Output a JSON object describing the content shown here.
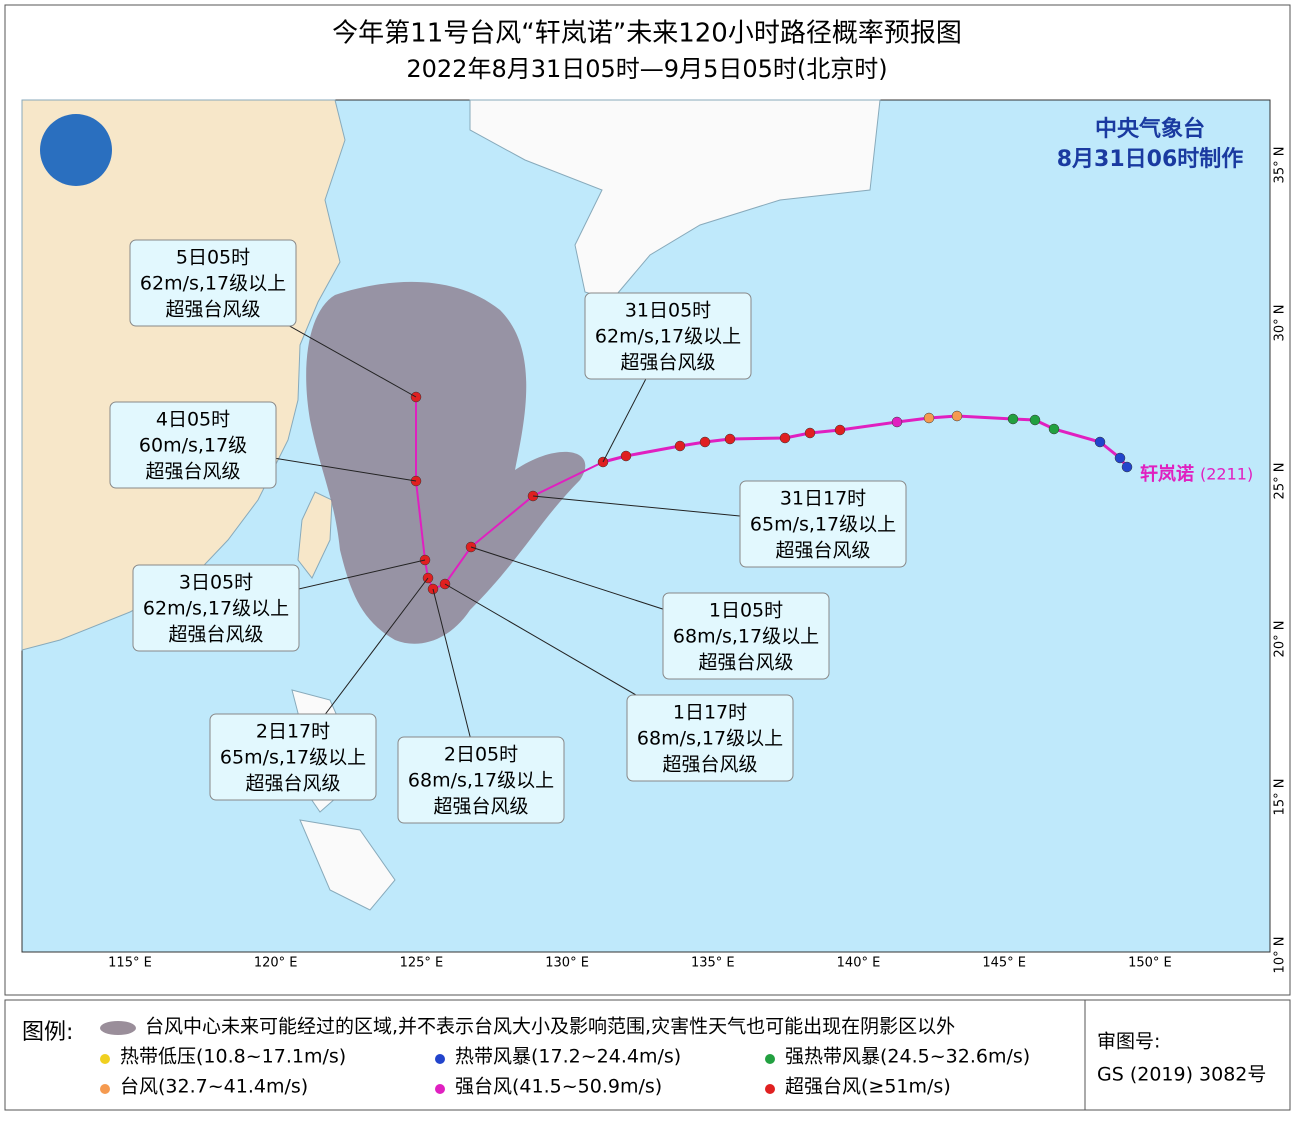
{
  "header": {
    "title": "今年第11号台风“轩岚诺”未来120小时路径概率预报图",
    "subtitle": "2022年8月31日05时—9月5日05时(北京时)"
  },
  "map": {
    "agency": "中央气象台",
    "issued": "8月31日06时制作",
    "storm_name": "轩岚诺",
    "storm_code": "(2211)",
    "lon_labels": [
      "115° E",
      "120° E",
      "125° E",
      "130° E",
      "135° E",
      "140° E",
      "145° E",
      "150° E"
    ],
    "lat_labels": [
      "35° N",
      "30° N",
      "25° N",
      "20° N",
      "15° N",
      "10° N"
    ],
    "callouts": [
      {
        "time": "5日05时",
        "wind": "62m/s,17级以上",
        "level": "超强台风级"
      },
      {
        "time": "31日05时",
        "wind": "62m/s,17级以上",
        "level": "超强台风级"
      },
      {
        "time": "4日05时",
        "wind": "60m/s,17级",
        "level": "超强台风级"
      },
      {
        "time": "31日17时",
        "wind": "65m/s,17级以上",
        "level": "超强台风级"
      },
      {
        "time": "3日05时",
        "wind": "62m/s,17级以上",
        "level": "超强台风级"
      },
      {
        "time": "1日05时",
        "wind": "68m/s,17级以上",
        "level": "超强台风级"
      },
      {
        "time": "2日17时",
        "wind": "65m/s,17级以上",
        "level": "超强台风级"
      },
      {
        "time": "1日17时",
        "wind": "68m/s,17级以上",
        "level": "超强台风级"
      },
      {
        "time": "2日05时",
        "wind": "68m/s,17级以上",
        "level": "超强台风级"
      }
    ]
  },
  "legend": {
    "title": "图例:",
    "cone": "台风中心未来可能经过的区域,并不表示台风大小及影响范围,灾害性天气也可能出现在阴影区以外",
    "items": [
      "热带低压(10.8~17.1m/s)",
      "热带风暴(17.2~24.4m/s)",
      "强热带风暴(24.5~32.6m/s)",
      "台风(32.7~41.4m/s)",
      "强台风(41.5~50.9m/s)",
      "超强台风(≥51m/s)"
    ]
  },
  "approval": {
    "label": "审图号:",
    "number": "GS (2019) 3082号"
  }
}
